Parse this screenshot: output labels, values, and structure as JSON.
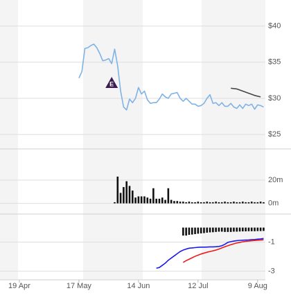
{
  "chart_data": [
    {
      "type": "line",
      "xlim": [
        -6.5,
        82.6
      ],
      "ylim": [
        23.1,
        43.6
      ],
      "yticks": [
        {
          "value": 40,
          "label": "$40"
        },
        {
          "value": 35,
          "label": "$35"
        },
        {
          "value": 30,
          "label": "$30"
        },
        {
          "value": 25,
          "label": "$25"
        }
      ],
      "grid": true,
      "series": [
        {
          "color": "#7fb2e5",
          "x": [
            20,
            21,
            22,
            23,
            24,
            25,
            26,
            27,
            28,
            29,
            30,
            31,
            32,
            33,
            34,
            35,
            36,
            37,
            38,
            39,
            40,
            41,
            42,
            43,
            44,
            45,
            46,
            47,
            48,
            49,
            50,
            51,
            52,
            53,
            54,
            55,
            56,
            57,
            58,
            59,
            60,
            61,
            62,
            63,
            64,
            65,
            66,
            67,
            68,
            69,
            70,
            71,
            72,
            73,
            74,
            75,
            76,
            77,
            78,
            79,
            80,
            81,
            82
          ],
          "values": [
            32.8,
            33.7,
            36.9,
            37.0,
            37.3,
            37.5,
            37.0,
            36.2,
            35.2,
            35.3,
            35.5,
            34.8,
            36.8,
            34.5,
            31.0,
            28.8,
            28.4,
            29.9,
            29.4,
            30.0,
            31.5,
            30.6,
            31.0,
            29.8,
            29.3,
            29.4,
            29.4,
            29.9,
            30.6,
            30.2,
            30.0,
            30.6,
            30.7,
            30.8,
            30.0,
            29.6,
            30.0,
            29.6,
            29.2,
            29.2,
            28.9,
            29.0,
            29.3,
            30.0,
            30.5,
            29.3,
            29.4,
            29.0,
            29.4,
            28.9,
            28.9,
            29.3,
            28.8,
            28.6,
            29.1,
            28.6,
            29.2,
            29.0,
            29.2,
            28.5,
            29.1,
            29.0,
            28.8
          ]
        },
        {
          "color": "#444444",
          "x": [
            71,
            73,
            75,
            77,
            79,
            81
          ],
          "values": [
            31.4,
            31.3,
            31.0,
            30.7,
            30.4,
            30.2
          ]
        }
      ],
      "annotations": [
        {
          "text": "E",
          "x": 31,
          "y": 32.1
        }
      ]
    },
    {
      "type": "bar",
      "xlim": [
        -6.5,
        82.6
      ],
      "ylim": [
        -5,
        45
      ],
      "yticks": [
        {
          "value": 20,
          "label": "20m"
        },
        {
          "value": 0,
          "label": "0m"
        }
      ],
      "grid": true,
      "series": [
        {
          "color": "#111111",
          "x": [
            32,
            33,
            34,
            35,
            36,
            37,
            38,
            39,
            40,
            41,
            42,
            43,
            44,
            45,
            46,
            47,
            48,
            49,
            50,
            51,
            52,
            53,
            54,
            55,
            56,
            57,
            58,
            59,
            60,
            61,
            62,
            63,
            64,
            65,
            66,
            67,
            68,
            69,
            70,
            71,
            72,
            73,
            74,
            75,
            76,
            77,
            78,
            79,
            80,
            81,
            82
          ],
          "values": [
            1,
            23,
            9,
            14,
            19,
            15,
            11,
            5,
            6,
            6,
            6,
            5,
            4,
            13,
            4,
            4,
            5,
            3,
            13,
            3,
            2,
            2,
            1.5,
            1.5,
            1,
            1.5,
            1,
            1,
            1.5,
            1,
            1,
            1.5,
            1,
            1,
            1.5,
            1,
            1,
            1.5,
            1,
            1,
            1.5,
            1,
            1,
            1.5,
            1,
            1,
            1.5,
            1,
            1,
            1.5,
            1
          ]
        }
      ]
    },
    {
      "type": "line",
      "xlim": [
        -6.5,
        82.6
      ],
      "ylim": [
        -3.6,
        0.6
      ],
      "yticks": [
        -1,
        -3
      ],
      "grid": true,
      "xticks": [
        {
          "value": 0,
          "label": "19 Apr"
        },
        {
          "value": 20,
          "label": "17 May"
        },
        {
          "value": 40,
          "label": "14 Jun"
        },
        {
          "value": 60,
          "label": "12 Jul"
        },
        {
          "value": 80,
          "label": "9 Aug"
        }
      ],
      "series": [
        {
          "type": "bar",
          "color": "#111111",
          "x": [
            55,
            56,
            57,
            58,
            59,
            60,
            61,
            62,
            63,
            64,
            65,
            66,
            67,
            68,
            69,
            70,
            71,
            72,
            73,
            74,
            75,
            76,
            77,
            78,
            79,
            80,
            81,
            82
          ],
          "values": [
            -0.55,
            -0.55,
            -0.5,
            -0.48,
            -0.45,
            -0.42,
            -0.4,
            -0.38,
            -0.35,
            -0.33,
            -0.32,
            -0.3,
            -0.28,
            -0.28,
            -0.3,
            -0.3,
            -0.3,
            -0.28,
            -0.28,
            -0.27,
            -0.26,
            -0.26,
            -0.25,
            -0.25,
            -0.25,
            -0.24,
            -0.24,
            -0.23
          ]
        },
        {
          "color": "#1a1aee",
          "x": [
            46,
            47,
            48,
            49,
            50,
            51,
            52,
            53,
            54,
            55,
            56,
            57,
            58,
            59,
            60,
            61,
            62,
            63,
            64,
            65,
            66,
            67,
            68,
            69,
            70,
            71,
            72,
            73,
            74,
            75,
            76,
            77,
            78,
            79,
            80,
            81,
            82
          ],
          "values": [
            -2.8,
            -2.75,
            -2.6,
            -2.45,
            -2.25,
            -2.1,
            -1.95,
            -1.8,
            -1.65,
            -1.55,
            -1.48,
            -1.42,
            -1.4,
            -1.38,
            -1.36,
            -1.35,
            -1.35,
            -1.34,
            -1.33,
            -1.33,
            -1.32,
            -1.3,
            -1.25,
            -1.15,
            -1.02,
            -0.97,
            -0.93,
            -0.9,
            -0.88,
            -0.87,
            -0.86,
            -0.85,
            -0.83,
            -0.82,
            -0.8,
            -0.78,
            -0.75
          ]
        },
        {
          "color": "#ee1a1a",
          "x": [
            55,
            56,
            57,
            58,
            59,
            60,
            61,
            62,
            63,
            64,
            65,
            66,
            67,
            68,
            69,
            70,
            71,
            72,
            73,
            74,
            75,
            76,
            77,
            78,
            79,
            80,
            81,
            82
          ],
          "values": [
            -2.4,
            -2.28,
            -2.18,
            -2.08,
            -1.98,
            -1.9,
            -1.82,
            -1.76,
            -1.7,
            -1.65,
            -1.6,
            -1.55,
            -1.48,
            -1.4,
            -1.32,
            -1.25,
            -1.18,
            -1.12,
            -1.06,
            -1.02,
            -0.98,
            -0.95,
            -0.93,
            -0.91,
            -0.89,
            -0.87,
            -0.86,
            -0.84
          ]
        }
      ]
    }
  ]
}
